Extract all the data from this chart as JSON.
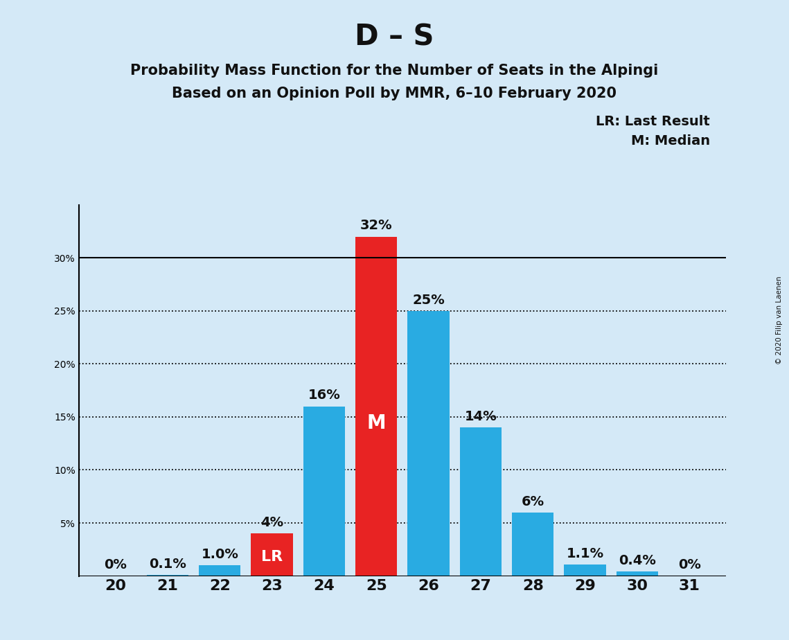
{
  "title": "D – S",
  "subtitle1": "Probability Mass Function for the Number of Seats in the Alpingi",
  "subtitle2": "Based on an Opinion Poll by MMR, 6–10 February 2020",
  "copyright": "© 2020 Filip van Laenen",
  "seats": [
    20,
    21,
    22,
    23,
    24,
    25,
    26,
    27,
    28,
    29,
    30,
    31
  ],
  "pmf_values": [
    0.0,
    0.1,
    1.0,
    4.0,
    16.0,
    32.0,
    25.0,
    14.0,
    6.0,
    1.1,
    0.4,
    0.0
  ],
  "labels": [
    "0%",
    "0.1%",
    "1.0%",
    "4%",
    "16%",
    "32%",
    "25%",
    "14%",
    "6%",
    "1.1%",
    "0.4%",
    "0%"
  ],
  "bar_color_base": "#29ABE2",
  "bar_color_red": "#E82323",
  "last_result_seat": 23,
  "median_seat": 25,
  "background_color": "#D4E9F7",
  "ylim": [
    0,
    35
  ],
  "ytick_vals": [
    0,
    5,
    10,
    15,
    20,
    25,
    30
  ],
  "ytick_labels": [
    "",
    "5%",
    "10%",
    "15%",
    "20%",
    "25%",
    "30%"
  ],
  "dotted_lines": [
    5,
    10,
    15,
    20,
    25
  ],
  "solid_lines": [
    0,
    30
  ],
  "legend_lr": "LR: Last Result",
  "legend_m": "M: Median",
  "title_fontsize": 30,
  "subtitle_fontsize": 15,
  "bar_label_fontsize": 14,
  "axis_fontsize": 16,
  "legend_fontsize": 14
}
